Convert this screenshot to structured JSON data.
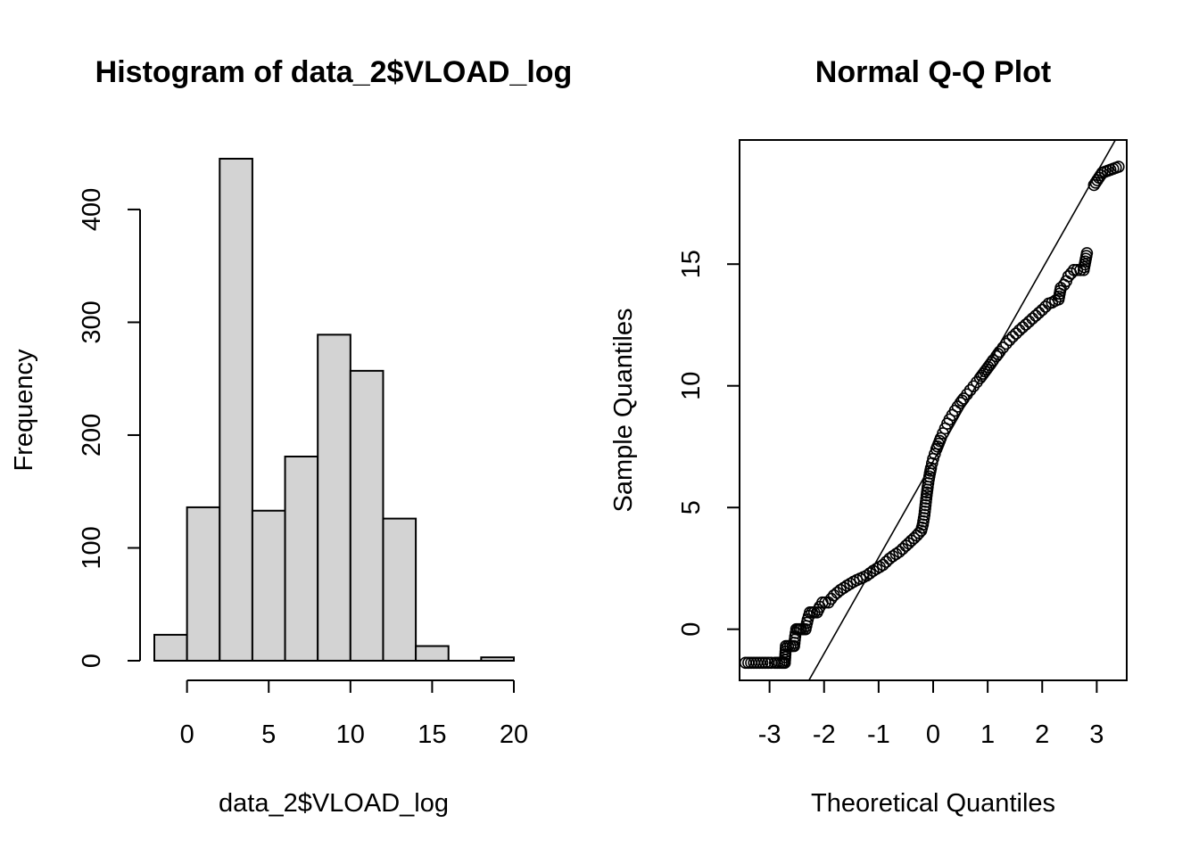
{
  "chart_data": [
    {
      "type": "bar",
      "subtype": "histogram",
      "title": "Histogram of data_2$VLOAD_log",
      "xlabel": "data_2$VLOAD_log",
      "ylabel": "Frequency",
      "bins": [
        {
          "x0": -2,
          "x1": 0,
          "count": 23
        },
        {
          "x0": 0,
          "x1": 2,
          "count": 136
        },
        {
          "x0": 2,
          "x1": 4,
          "count": 445
        },
        {
          "x0": 4,
          "x1": 6,
          "count": 133
        },
        {
          "x0": 6,
          "x1": 8,
          "count": 181
        },
        {
          "x0": 8,
          "x1": 10,
          "count": 289
        },
        {
          "x0": 10,
          "x1": 12,
          "count": 257
        },
        {
          "x0": 12,
          "x1": 14,
          "count": 126
        },
        {
          "x0": 14,
          "x1": 16,
          "count": 13
        },
        {
          "x0": 16,
          "x1": 18,
          "count": 0
        },
        {
          "x0": 18,
          "x1": 20,
          "count": 3
        }
      ],
      "xticks": [
        "0",
        "5",
        "10",
        "15",
        "20"
      ],
      "xtick_values": [
        0,
        5,
        10,
        15,
        20
      ],
      "yticks": [
        "0",
        "100",
        "200",
        "300",
        "400"
      ],
      "ytick_values": [
        0,
        100,
        200,
        300,
        400
      ],
      "xlim": [
        -2,
        20
      ],
      "ylim": [
        0,
        445
      ],
      "grid": false,
      "bar_color": "#d3d3d3"
    },
    {
      "type": "scatter",
      "subtype": "qq",
      "title": "Normal Q-Q Plot",
      "xlabel": "Theoretical Quantiles",
      "ylabel": "Sample Quantiles",
      "xticks": [
        "-3",
        "-2",
        "-1",
        "0",
        "1",
        "2",
        "3"
      ],
      "xtick_values": [
        -3,
        -2,
        -1,
        0,
        1,
        2,
        3
      ],
      "yticks": [
        "0",
        "5",
        "10",
        "15"
      ],
      "ytick_values": [
        0,
        5,
        10,
        15
      ],
      "xlim": [
        -3.55,
        3.55
      ],
      "ylim": [
        -2.1,
        20.1
      ],
      "grid": false,
      "points": [
        [
          -3.44,
          -1.38
        ],
        [
          -3.08,
          -1.38
        ],
        [
          -2.97,
          -1.38
        ],
        [
          -2.9,
          -1.38
        ],
        [
          -2.86,
          -1.38
        ],
        [
          -2.82,
          -1.38
        ],
        [
          -2.78,
          -1.38
        ],
        [
          -2.75,
          -1.38
        ],
        [
          -2.72,
          -1.38
        ],
        [
          -2.7,
          -0.69
        ],
        [
          -2.66,
          -0.69
        ],
        [
          -2.62,
          -0.69
        ],
        [
          -2.58,
          -0.69
        ],
        [
          -2.55,
          -0.69
        ],
        [
          -2.53,
          -0.3
        ],
        [
          -2.51,
          0.0
        ],
        [
          -2.48,
          0.0
        ],
        [
          -2.45,
          0.0
        ],
        [
          -2.42,
          0.0
        ],
        [
          -2.38,
          0.0
        ],
        [
          -2.34,
          0.0
        ],
        [
          -2.3,
          0.4
        ],
        [
          -2.26,
          0.69
        ],
        [
          -2.22,
          0.69
        ],
        [
          -2.18,
          0.69
        ],
        [
          -2.13,
          0.69
        ],
        [
          -2.08,
          0.92
        ],
        [
          -2.03,
          1.1
        ],
        [
          -1.98,
          1.1
        ],
        [
          -1.92,
          1.1
        ],
        [
          -1.87,
          1.25
        ],
        [
          -1.82,
          1.39
        ],
        [
          -1.76,
          1.5
        ],
        [
          -1.7,
          1.61
        ],
        [
          -1.64,
          1.7
        ],
        [
          -1.58,
          1.79
        ],
        [
          -1.52,
          1.87
        ],
        [
          -1.46,
          1.95
        ],
        [
          -1.4,
          2.02
        ],
        [
          -1.34,
          2.08
        ],
        [
          -1.28,
          2.14
        ],
        [
          -1.22,
          2.2
        ],
        [
          -1.16,
          2.3
        ],
        [
          -1.1,
          2.4
        ],
        [
          -1.04,
          2.48
        ],
        [
          -0.98,
          2.56
        ],
        [
          -0.92,
          2.64
        ],
        [
          -0.86,
          2.77
        ],
        [
          -0.8,
          2.9
        ],
        [
          -0.74,
          3.0
        ],
        [
          -0.68,
          3.09
        ],
        [
          -0.62,
          3.18
        ],
        [
          -0.56,
          3.3
        ],
        [
          -0.5,
          3.43
        ],
        [
          -0.45,
          3.53
        ],
        [
          -0.4,
          3.64
        ],
        [
          -0.35,
          3.74
        ],
        [
          -0.3,
          3.85
        ],
        [
          -0.26,
          3.95
        ],
        [
          -0.22,
          4.05
        ],
        [
          -0.19,
          4.3
        ],
        [
          -0.16,
          4.7
        ],
        [
          -0.14,
          5.1
        ],
        [
          -0.12,
          5.5
        ],
        [
          -0.1,
          5.85
        ],
        [
          -0.08,
          6.15
        ],
        [
          -0.06,
          6.4
        ],
        [
          -0.04,
          6.62
        ],
        [
          -0.02,
          6.82
        ],
        [
          0.0,
          7.0
        ],
        [
          0.03,
          7.2
        ],
        [
          0.06,
          7.4
        ],
        [
          0.1,
          7.62
        ],
        [
          0.14,
          7.85
        ],
        [
          0.18,
          8.05
        ],
        [
          0.22,
          8.25
        ],
        [
          0.26,
          8.45
        ],
        [
          0.3,
          8.62
        ],
        [
          0.35,
          8.8
        ],
        [
          0.4,
          8.98
        ],
        [
          0.45,
          9.15
        ],
        [
          0.5,
          9.3
        ],
        [
          0.56,
          9.48
        ],
        [
          0.62,
          9.65
        ],
        [
          0.68,
          9.82
        ],
        [
          0.74,
          9.98
        ],
        [
          0.8,
          10.15
        ],
        [
          0.86,
          10.32
        ],
        [
          0.92,
          10.5
        ],
        [
          0.98,
          10.68
        ],
        [
          1.04,
          10.86
        ],
        [
          1.1,
          11.05
        ],
        [
          1.16,
          11.22
        ],
        [
          1.22,
          11.4
        ],
        [
          1.28,
          11.57
        ],
        [
          1.34,
          11.73
        ],
        [
          1.4,
          11.88
        ],
        [
          1.46,
          12.02
        ],
        [
          1.52,
          12.15
        ],
        [
          1.58,
          12.28
        ],
        [
          1.64,
          12.4
        ],
        [
          1.7,
          12.52
        ],
        [
          1.76,
          12.64
        ],
        [
          1.82,
          12.76
        ],
        [
          1.88,
          12.88
        ],
        [
          1.94,
          13.0
        ],
        [
          2.0,
          13.12
        ],
        [
          2.06,
          13.25
        ],
        [
          2.12,
          13.38
        ],
        [
          2.18,
          13.42
        ],
        [
          2.24,
          13.5
        ],
        [
          2.3,
          13.55
        ],
        [
          2.34,
          14.02
        ],
        [
          2.4,
          14.15
        ],
        [
          2.44,
          14.3
        ],
        [
          2.48,
          14.5
        ],
        [
          2.53,
          14.62
        ],
        [
          2.58,
          14.76
        ],
        [
          2.64,
          14.76
        ],
        [
          2.7,
          14.76
        ],
        [
          2.76,
          14.76
        ],
        [
          2.82,
          15.45
        ],
        [
          2.95,
          18.25
        ],
        [
          3.1,
          18.75
        ],
        [
          3.4,
          19.0
        ]
      ],
      "reference_line": {
        "intercept": 6.9,
        "slope": 3.95
      }
    }
  ]
}
